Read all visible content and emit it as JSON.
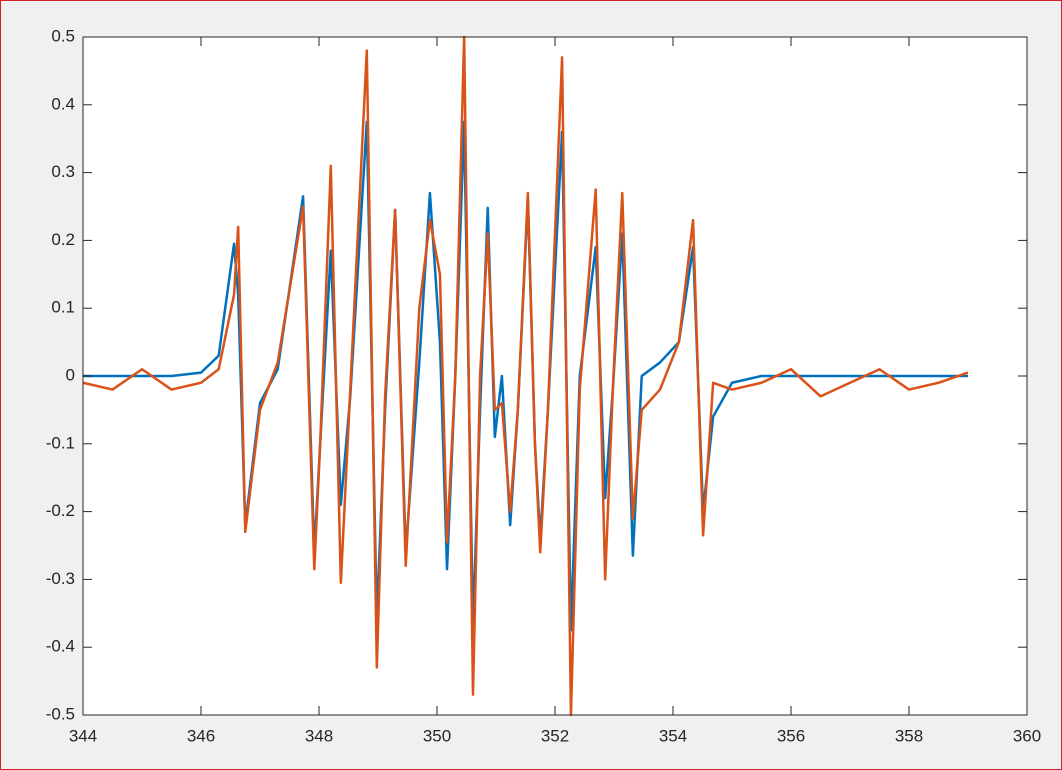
{
  "chart_data": {
    "type": "line",
    "x": [
      344,
      344.5,
      345,
      345.5,
      346,
      346.3,
      346.56,
      346.63,
      346.75,
      347.0,
      347.3,
      347.73,
      347.92,
      348.02,
      348.2,
      348.37,
      348.53,
      348.81,
      348.98,
      349.12,
      349.29,
      349.47,
      349.7,
      349.88,
      350.05,
      350.17,
      350.31,
      350.46,
      350.61,
      350.73,
      350.86,
      350.98,
      351.1,
      351.24,
      351.37,
      351.54,
      351.66,
      351.75,
      351.88,
      352.12,
      352.27,
      352.42,
      352.69,
      352.85,
      352.98,
      353.14,
      353.32,
      353.47,
      353.78,
      354.1,
      354.34,
      354.51,
      354.68,
      355,
      355.5,
      356,
      356.5,
      357,
      357.5,
      358,
      358.5,
      359
    ],
    "series": [
      {
        "color": "#0072BD",
        "values": [
          0,
          0,
          0,
          0,
          0.005,
          0.03,
          0.195,
          0.12,
          -0.22,
          -0.04,
          0.01,
          0.265,
          -0.26,
          -0.1,
          0.185,
          -0.19,
          -0.03,
          0.375,
          -0.36,
          -0.05,
          0.245,
          -0.26,
          0.02,
          0.27,
          0.05,
          -0.285,
          0.0,
          0.375,
          -0.37,
          -0.05,
          0.248,
          -0.09,
          0.0,
          -0.22,
          -0.05,
          0.26,
          -0.1,
          -0.24,
          -0.05,
          0.36,
          -0.375,
          0.0,
          0.19,
          -0.18,
          -0.02,
          0.21,
          -0.265,
          0.0,
          0.02,
          0.05,
          0.19,
          -0.2,
          -0.06,
          -0.01,
          0,
          0,
          0,
          0,
          0,
          0,
          0,
          0
        ]
      },
      {
        "color": "#D95319",
        "values": [
          -0.01,
          -0.02,
          0.01,
          -0.02,
          -0.01,
          0.01,
          0.12,
          0.22,
          -0.23,
          -0.05,
          0.02,
          0.25,
          -0.285,
          -0.1,
          0.31,
          -0.305,
          -0.02,
          0.48,
          -0.43,
          -0.03,
          0.245,
          -0.28,
          0.1,
          0.23,
          0.15,
          -0.245,
          0.0,
          0.5,
          -0.47,
          0.0,
          0.21,
          -0.05,
          -0.04,
          -0.2,
          -0.05,
          0.27,
          -0.1,
          -0.26,
          -0.05,
          0.47,
          -0.5,
          -0.02,
          0.275,
          -0.3,
          -0.02,
          0.27,
          -0.21,
          -0.05,
          -0.02,
          0.05,
          0.23,
          -0.235,
          -0.01,
          -0.02,
          -0.01,
          0.01,
          -0.03,
          -0.01,
          0.01,
          -0.02,
          -0.01,
          0.005
        ]
      }
    ],
    "xlim": [
      344,
      360
    ],
    "xticks": [
      344,
      346,
      348,
      350,
      352,
      354,
      356,
      358,
      360
    ],
    "ylim": [
      -0.5,
      0.5
    ],
    "yticks": [
      -0.5,
      -0.4,
      -0.3,
      -0.2,
      -0.1,
      0,
      0.1,
      0.2,
      0.3,
      0.4,
      0.5
    ]
  }
}
